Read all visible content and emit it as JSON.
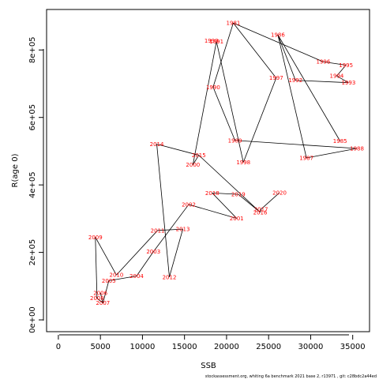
{
  "chart_data": {
    "type": "line",
    "xlabel": "SSB",
    "ylabel": "R(age 0)",
    "xlim": [
      -1400,
      37000
    ],
    "ylim": [
      -35000,
      920000
    ],
    "x_ticks": [
      {
        "value": 0,
        "label": "0"
      },
      {
        "value": 5000,
        "label": "5000"
      },
      {
        "value": 10000,
        "label": "10000"
      },
      {
        "value": 15000,
        "label": "15000"
      },
      {
        "value": 20000,
        "label": "20000"
      },
      {
        "value": 25000,
        "label": "25000"
      },
      {
        "value": 30000,
        "label": "30000"
      },
      {
        "value": 35000,
        "label": "35000"
      }
    ],
    "y_ticks": [
      {
        "value": 0,
        "label": "0e+00"
      },
      {
        "value": 200000,
        "label": "2e+05"
      },
      {
        "value": 400000,
        "label": "4e+05"
      },
      {
        "value": 600000,
        "label": "6e+05"
      },
      {
        "value": 800000,
        "label": "8e+05"
      }
    ],
    "point_label_color": "#ff0000",
    "line_color": "#000000",
    "points": [
      {
        "label": "1981",
        "x": 20800,
        "y": 880000
      },
      {
        "label": "1985",
        "x": 33500,
        "y": 530000
      },
      {
        "label": "1986",
        "x": 26100,
        "y": 845000
      },
      {
        "label": "1987",
        "x": 29500,
        "y": 480000
      },
      {
        "label": "1988",
        "x": 35500,
        "y": 508000
      },
      {
        "label": "1989",
        "x": 21000,
        "y": 532000
      },
      {
        "label": "1990",
        "x": 18400,
        "y": 690000
      },
      {
        "label": "1991",
        "x": 18800,
        "y": 825000
      },
      {
        "label": "1992",
        "x": 28200,
        "y": 710000
      },
      {
        "label": "1993",
        "x": 34500,
        "y": 703000
      },
      {
        "label": "1994",
        "x": 33100,
        "y": 723000
      },
      {
        "label": "1995",
        "x": 34200,
        "y": 755000
      },
      {
        "label": "1996",
        "x": 31500,
        "y": 765000
      },
      {
        "label": "1997",
        "x": 25900,
        "y": 717000
      },
      {
        "label": "1998",
        "x": 22000,
        "y": 467000
      },
      {
        "label": "1999",
        "x": 18200,
        "y": 827000
      },
      {
        "label": "2000",
        "x": 16000,
        "y": 460000
      },
      {
        "label": "2001",
        "x": 21200,
        "y": 301000
      },
      {
        "label": "2002",
        "x": 15500,
        "y": 342000
      },
      {
        "label": "2003",
        "x": 11300,
        "y": 202000
      },
      {
        "label": "2004",
        "x": 9300,
        "y": 130000
      },
      {
        "label": "2005",
        "x": 6000,
        "y": 116000
      },
      {
        "label": "2006",
        "x": 5000,
        "y": 80000
      },
      {
        "label": "2007",
        "x": 5300,
        "y": 50000
      },
      {
        "label": "2008",
        "x": 4600,
        "y": 64000
      },
      {
        "label": "2009",
        "x": 4400,
        "y": 245000
      },
      {
        "label": "2010",
        "x": 6900,
        "y": 133000
      },
      {
        "label": "2011",
        "x": 11800,
        "y": 265000
      },
      {
        "label": "2012",
        "x": 13200,
        "y": 127000
      },
      {
        "label": "2013",
        "x": 14800,
        "y": 269000
      },
      {
        "label": "2014",
        "x": 11700,
        "y": 521000
      },
      {
        "label": "2015",
        "x": 16700,
        "y": 488000
      },
      {
        "label": "2016",
        "x": 24000,
        "y": 319000
      },
      {
        "label": "2017",
        "x": 24100,
        "y": 328000
      },
      {
        "label": "2018",
        "x": 18300,
        "y": 376000
      },
      {
        "label": "2019",
        "x": 21400,
        "y": 372000
      },
      {
        "label": "2020",
        "x": 26300,
        "y": 377000
      }
    ],
    "line_order": [
      "1988",
      "1989",
      "1990",
      "1981",
      "1997",
      "1998",
      "1991",
      "2000",
      "2015",
      "2014",
      "2012",
      "2013",
      "2011",
      "2010",
      "2009",
      "2008",
      "2007",
      "2005",
      "2004",
      "2003",
      "2002",
      "2001",
      "2018",
      "2019",
      "2016",
      "2017",
      "2020"
    ],
    "extra_segments": [
      [
        "1981",
        "1996"
      ],
      [
        "1996",
        "1995"
      ],
      [
        "1995",
        "1994"
      ],
      [
        "1994",
        "1993"
      ],
      [
        "1993",
        "1992"
      ],
      [
        "1992",
        "1986"
      ],
      [
        "1986",
        "1987"
      ],
      [
        "1987",
        "1988"
      ],
      [
        "1986",
        "1985"
      ],
      [
        "2015",
        "2016"
      ],
      [
        "2007",
        "2006"
      ]
    ]
  },
  "footer": {
    "text": "stockassessment.org,  whiting  6a  benchmark  2021  base  2,  r13971 ,  git:  c28bdc2a44ed"
  }
}
